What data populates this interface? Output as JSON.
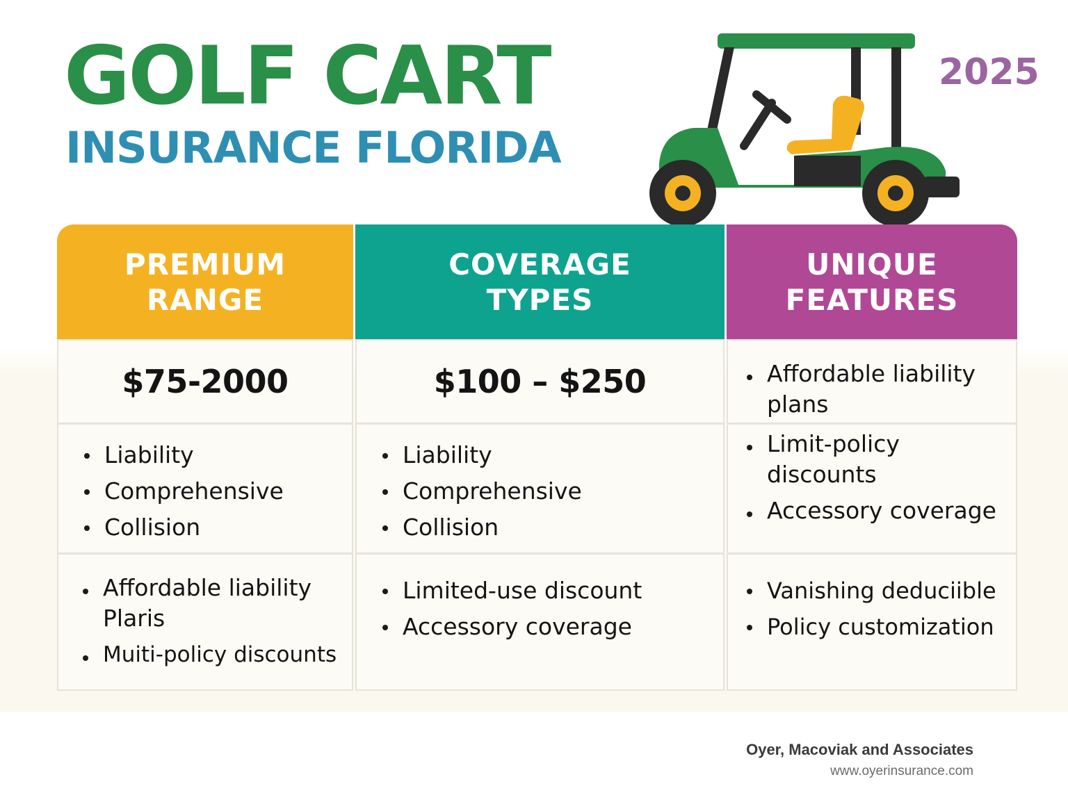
{
  "title": {
    "line1": "GOLF CART",
    "line2": "INSURANCE FLORIDA",
    "year": "2025"
  },
  "colors": {
    "title_green": "#2a8f48",
    "title_blue": "#2e8fb2",
    "year_purple": "#9a65a0",
    "premium_header": "#f4b223",
    "coverage_header": "#0ea38e",
    "unique_header": "#b04896"
  },
  "illustration": "golf-cart-icon",
  "table": {
    "headers": [
      {
        "line1": "PREMIUM",
        "line2": "RANGE"
      },
      {
        "line1": "COVERAGE",
        "line2": "TYPES"
      },
      {
        "line1": "UNIQUE",
        "line2": "FEATURES"
      }
    ],
    "row1": {
      "premium": "$75-2000",
      "coverage": "$100 – $250",
      "unique": [
        "Affordable liability plans"
      ]
    },
    "row2": {
      "premium": [
        "Liability",
        "Comprehensive",
        "Collision"
      ],
      "coverage": [
        "Liability",
        "Comprehensive",
        "Collision"
      ],
      "unique": [
        "Limit-policy discounts",
        "Accessory coverage"
      ]
    },
    "row3": {
      "premium": [
        "Affordable liability Plaris",
        "Muiti-policy discounts"
      ],
      "coverage": [
        "Limited-use discount",
        "Accessory coverage"
      ],
      "unique": [
        "Vanishing deduciible",
        "Policy customization"
      ]
    }
  },
  "footer": {
    "company": "Oyer, Macoviak and Associates",
    "website": "www.oyerinsurance.com"
  }
}
